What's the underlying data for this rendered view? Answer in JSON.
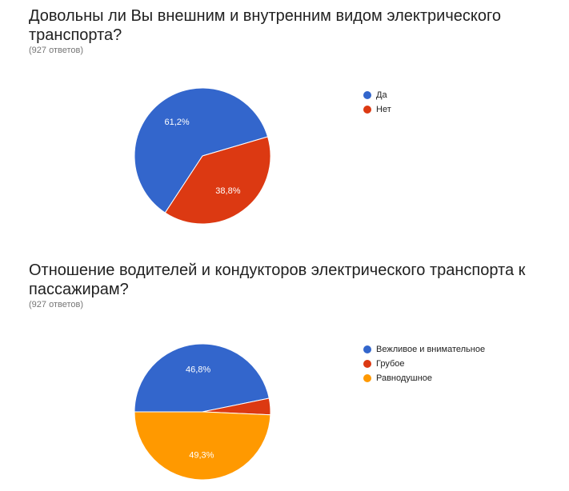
{
  "chart_data": [
    {
      "type": "pie",
      "title": "Довольны ли Вы внешним и внутренним видом электрического транспорта?",
      "subtitle": "(927 ответов)",
      "legend_position": "right",
      "slices": [
        {
          "label": "Да",
          "value": 61.2,
          "display": "61,2%",
          "color": "#3366cc"
        },
        {
          "label": "Нет",
          "value": 38.8,
          "display": "38,8%",
          "color": "#dc3912"
        }
      ]
    },
    {
      "type": "pie",
      "title": "Отношение водителей и кондукторов электрического транспорта к пассажирам?",
      "subtitle": "(927 ответов)",
      "legend_position": "right",
      "slices": [
        {
          "label": "Вежливое и внимательное",
          "value": 46.8,
          "display": "46,8%",
          "color": "#3366cc"
        },
        {
          "label": "Грубое",
          "value": 3.9,
          "display": "",
          "color": "#dc3912"
        },
        {
          "label": "Равнодушное",
          "value": 49.3,
          "display": "49,3%",
          "color": "#ff9900"
        }
      ]
    }
  ]
}
